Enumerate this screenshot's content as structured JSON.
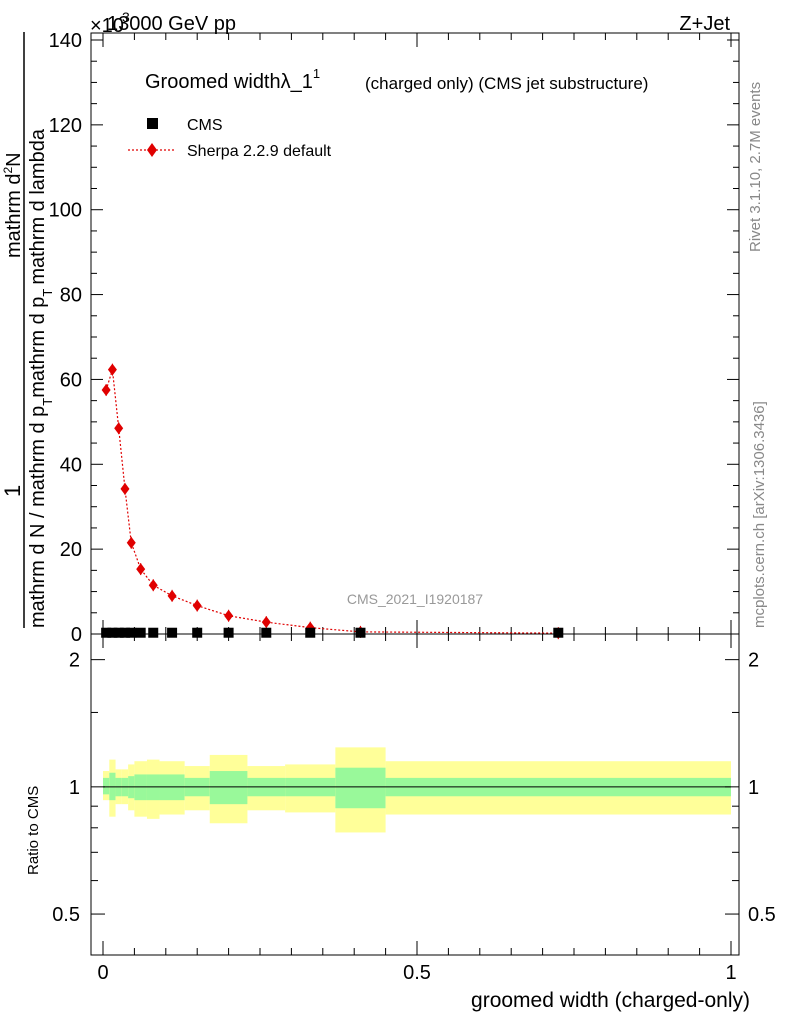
{
  "header": {
    "exponent_prefix": "×10",
    "exponent": "3",
    "energy_label": "13000 GeV pp",
    "process_label": "Z+Jet"
  },
  "side_labels": {
    "rivet": "Rivet 3.1.10,  2.7M events",
    "mcplots": "mcplots.cern.ch [arXiv:1306.3436]"
  },
  "chart_data": [
    {
      "type": "scatter",
      "title": "Groomed widthλ_1",
      "title_superscript": "1",
      "subtitle": "(charged only) (CMS jet substructure)",
      "ylabel_numerator": "1",
      "ylabel_denominator": "mathrm d N / mathrm d p_T mathrm d p_T mathrm d lambda",
      "ylabel_den_part1": "mathrm d N / mathrm d p",
      "ylabel_den_sub1": "T",
      "ylabel_den_part2": "mathrm d p",
      "ylabel_den_sub2": "T",
      "ylabel_den_part3": "mathrm d lambda",
      "ylabel_top": "mathrm d",
      "ylabel_top_sup": "2",
      "ylabel_top_end": "N",
      "watermark": "CMS_2021_I1920187",
      "xlim": [
        0,
        1
      ],
      "ylim": [
        0,
        140
      ],
      "y_ticks": [
        0,
        20,
        40,
        60,
        80,
        100,
        120,
        140
      ],
      "y_tick_labels": [
        "0",
        "20",
        "40",
        "60",
        "80",
        "100",
        "120",
        "140"
      ],
      "legend_position": "top-left",
      "series": [
        {
          "name": "CMS",
          "color": "#000000",
          "marker": "square",
          "x": [
            0.005,
            0.015,
            0.025,
            0.035,
            0.045,
            0.06,
            0.08,
            0.11,
            0.15,
            0.2,
            0.26,
            0.33,
            0.41,
            0.725
          ],
          "y": [
            0.3,
            0.3,
            0.3,
            0.3,
            0.3,
            0.3,
            0.3,
            0.3,
            0.3,
            0.3,
            0.3,
            0.3,
            0.3,
            0.3
          ]
        },
        {
          "name": "Sherpa 2.2.9 default",
          "color": "#e00000",
          "marker": "diamond",
          "line": "dotted",
          "x": [
            0.005,
            0.015,
            0.025,
            0.035,
            0.045,
            0.06,
            0.08,
            0.11,
            0.15,
            0.2,
            0.26,
            0.33,
            0.41,
            0.725
          ],
          "y": [
            57.5,
            62.3,
            48.5,
            34.2,
            21.5,
            15.3,
            11.5,
            9.0,
            6.7,
            4.3,
            2.8,
            1.5,
            0.5,
            0.2
          ]
        }
      ]
    },
    {
      "type": "area",
      "ylabel": "Ratio to CMS",
      "xlabel": "groomed width (charged-only)",
      "xlim": [
        0,
        1
      ],
      "ylim": [
        0.4,
        2.3
      ],
      "y_scale": "log",
      "x_ticks": [
        0,
        0.5,
        1
      ],
      "x_tick_labels": [
        "0",
        "0.5",
        "1"
      ],
      "y_ticks": [
        0.5,
        1,
        2
      ],
      "y_tick_labels": [
        "0.5",
        "1",
        "2"
      ],
      "reference_line": 1,
      "bins": [
        {
          "x0": 0.0,
          "x1": 0.01,
          "inner": [
            0.96,
            1.05
          ],
          "outer": [
            0.93,
            1.09
          ]
        },
        {
          "x0": 0.01,
          "x1": 0.02,
          "inner": [
            0.93,
            1.08
          ],
          "outer": [
            0.85,
            1.16
          ]
        },
        {
          "x0": 0.02,
          "x1": 0.03,
          "inner": [
            0.95,
            1.05
          ],
          "outer": [
            0.91,
            1.1
          ]
        },
        {
          "x0": 0.03,
          "x1": 0.04,
          "inner": [
            0.95,
            1.05
          ],
          "outer": [
            0.91,
            1.1
          ]
        },
        {
          "x0": 0.04,
          "x1": 0.05,
          "inner": [
            0.94,
            1.06
          ],
          "outer": [
            0.88,
            1.13
          ]
        },
        {
          "x0": 0.05,
          "x1": 0.07,
          "inner": [
            0.93,
            1.07
          ],
          "outer": [
            0.85,
            1.15
          ]
        },
        {
          "x0": 0.07,
          "x1": 0.09,
          "inner": [
            0.93,
            1.07
          ],
          "outer": [
            0.84,
            1.16
          ]
        },
        {
          "x0": 0.09,
          "x1": 0.13,
          "inner": [
            0.93,
            1.07
          ],
          "outer": [
            0.86,
            1.15
          ]
        },
        {
          "x0": 0.13,
          "x1": 0.17,
          "inner": [
            0.95,
            1.05
          ],
          "outer": [
            0.88,
            1.12
          ]
        },
        {
          "x0": 0.17,
          "x1": 0.23,
          "inner": [
            0.91,
            1.09
          ],
          "outer": [
            0.82,
            1.19
          ]
        },
        {
          "x0": 0.23,
          "x1": 0.29,
          "inner": [
            0.95,
            1.05
          ],
          "outer": [
            0.88,
            1.12
          ]
        },
        {
          "x0": 0.29,
          "x1": 0.37,
          "inner": [
            0.95,
            1.05
          ],
          "outer": [
            0.87,
            1.13
          ]
        },
        {
          "x0": 0.37,
          "x1": 0.45,
          "inner": [
            0.89,
            1.11
          ],
          "outer": [
            0.78,
            1.24
          ]
        },
        {
          "x0": 0.45,
          "x1": 1.0,
          "inner": [
            0.95,
            1.05
          ],
          "outer": [
            0.86,
            1.15
          ]
        }
      ],
      "inner_color": "#99f99a",
      "outer_color": "#ffff99"
    }
  ]
}
